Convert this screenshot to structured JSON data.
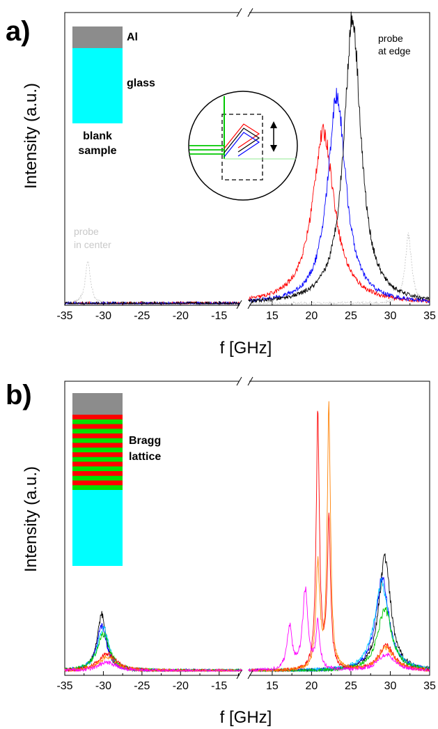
{
  "panels": [
    {
      "label": "a)",
      "ylabel": "Intensity (a.u.)",
      "xlabel": "f [GHz]",
      "legend_layers": {
        "top": "Al",
        "middle": "glass",
        "caption_line1": "blank",
        "caption_line2": "sample"
      },
      "annotation_edge_line1": "probe",
      "annotation_edge_line2": "at edge",
      "annotation_center_line1": "probe",
      "annotation_center_line2": "in center"
    },
    {
      "label": "b)",
      "ylabel": "Intensity (a.u.)",
      "xlabel": "f [GHz]",
      "legend_layers": {
        "top": "",
        "lattice_line1": "Bragg",
        "lattice_line2": "lattice"
      }
    }
  ],
  "colors": {
    "al_layer": "#8c8c8c",
    "glass_layer": "#00ffff",
    "bragg_red": "#ff0000",
    "bragg_green": "#00e000"
  },
  "chart_data": [
    {
      "type": "line",
      "title": "",
      "xlabel": "f [GHz]",
      "ylabel": "Intensity (a.u.)",
      "x_break": [
        -12,
        12
      ],
      "x_ticks_left": [
        "-35",
        "-30",
        "-25",
        "-20",
        "-15"
      ],
      "x_ticks_right": [
        "15",
        "20",
        "25",
        "30",
        "35"
      ],
      "xlim_left": [
        -35,
        -12
      ],
      "xlim_right": [
        12,
        35
      ],
      "ylim": [
        0,
        1
      ],
      "grid": false,
      "series": [
        {
          "color": "#c8c8c8",
          "dashed": true,
          "peaks": [
            {
              "x": -32,
              "y": 0.15,
              "w": 0.4
            },
            {
              "x": 32.3,
              "y": 0.24,
              "w": 0.5
            }
          ]
        },
        {
          "color": "#ff0000",
          "peaks": [
            {
              "x": 21.5,
              "y": 0.6,
              "w": 1.7
            }
          ]
        },
        {
          "color": "#0000ff",
          "peaks": [
            {
              "x": 23.2,
              "y": 0.73,
              "w": 1.4
            }
          ]
        },
        {
          "color": "#000000",
          "peaks": [
            {
              "x": 25.2,
              "y": 1.0,
              "w": 1.3
            }
          ]
        }
      ]
    },
    {
      "type": "line",
      "title": "",
      "xlabel": "f [GHz]",
      "ylabel": "Intensity (a.u.)",
      "x_break": [
        -12,
        12
      ],
      "x_ticks_left": [
        "-35",
        "-30",
        "-25",
        "-20",
        "-15"
      ],
      "x_ticks_right": [
        "15",
        "20",
        "25",
        "30",
        "35"
      ],
      "xlim_left": [
        -35,
        -12
      ],
      "xlim_right": [
        12,
        35
      ],
      "ylim": [
        0,
        1
      ],
      "grid": false,
      "series": [
        {
          "color": "#000000",
          "peaks": [
            {
              "x": -30.2,
              "y": 0.2,
              "w": 0.7
            },
            {
              "x": 29.3,
              "y": 0.4,
              "w": 0.9
            }
          ]
        },
        {
          "color": "#0000ff",
          "peaks": [
            {
              "x": -30.2,
              "y": 0.16,
              "w": 0.8
            },
            {
              "x": 29.0,
              "y": 0.33,
              "w": 1.0
            }
          ]
        },
        {
          "color": "#00c8ff",
          "peaks": [
            {
              "x": -30.0,
              "y": 0.15,
              "w": 0.9
            },
            {
              "x": 28.9,
              "y": 0.31,
              "w": 1.1
            }
          ]
        },
        {
          "color": "#00c800",
          "peaks": [
            {
              "x": -30.0,
              "y": 0.13,
              "w": 1.0
            },
            {
              "x": 29.3,
              "y": 0.22,
              "w": 1.1
            }
          ]
        },
        {
          "color": "#ff0000",
          "peaks": [
            {
              "x": -29.5,
              "y": 0.06,
              "w": 1.4
            },
            {
              "x": 20.8,
              "y": 0.88,
              "w": 0.25
            },
            {
              "x": 22.2,
              "y": 0.51,
              "w": 0.25
            },
            {
              "x": 29.5,
              "y": 0.09,
              "w": 1.2
            }
          ]
        },
        {
          "color": "#ff8000",
          "peaks": [
            {
              "x": -29.5,
              "y": 0.05,
              "w": 1.4
            },
            {
              "x": 20.8,
              "y": 0.36,
              "w": 0.3
            },
            {
              "x": 22.2,
              "y": 0.9,
              "w": 0.25
            },
            {
              "x": 29.5,
              "y": 0.08,
              "w": 1.2
            }
          ]
        },
        {
          "color": "#ff00ff",
          "peaks": [
            {
              "x": -29.5,
              "y": 0.03,
              "w": 1.5
            },
            {
              "x": 17.2,
              "y": 0.15,
              "w": 0.4
            },
            {
              "x": 19.2,
              "y": 0.28,
              "w": 0.4
            },
            {
              "x": 20.8,
              "y": 0.16,
              "w": 0.3
            },
            {
              "x": 29.5,
              "y": 0.06,
              "w": 1.3
            }
          ]
        }
      ]
    }
  ]
}
